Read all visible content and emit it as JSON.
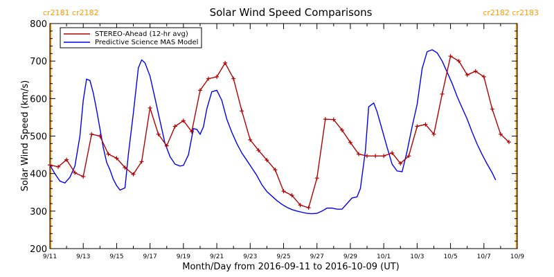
{
  "chart_data": {
    "type": "line",
    "title": "Solar Wind Speed Comparisons",
    "xlabel": "Month/Day from 2016-09-11 to 2016-10-09 (UT)",
    "ylabel": "Solar Wind Speed (km/s)",
    "xlim": [
      0,
      28
    ],
    "ylim": [
      200,
      800
    ],
    "yticks": [
      200,
      300,
      400,
      500,
      600,
      700,
      800
    ],
    "xticks": [
      {
        "x": 0,
        "label": "9/11"
      },
      {
        "x": 2,
        "label": "9/13"
      },
      {
        "x": 4,
        "label": "9/15"
      },
      {
        "x": 6,
        "label": "9/17"
      },
      {
        "x": 8,
        "label": "9/19"
      },
      {
        "x": 10,
        "label": "9/21"
      },
      {
        "x": 12,
        "label": "9/23"
      },
      {
        "x": 14,
        "label": "9/25"
      },
      {
        "x": 16,
        "label": "9/27"
      },
      {
        "x": 18,
        "label": "9/29"
      },
      {
        "x": 20,
        "label": "10/1"
      },
      {
        "x": 22,
        "label": "10/3"
      },
      {
        "x": 24,
        "label": "10/5"
      },
      {
        "x": 26,
        "label": "10/7"
      },
      {
        "x": 28,
        "label": "10/9"
      }
    ],
    "carrington": [
      {
        "x": 0.05,
        "label": "cr2181 cr2182",
        "side": "left"
      },
      {
        "x": 27.95,
        "label": "cr2182 cr2183",
        "side": "right"
      }
    ],
    "legend_position": "top-left",
    "series": [
      {
        "name": "STEREO-Ahead (12-hr avg)",
        "color": "#b00000",
        "markers": true,
        "points": [
          [
            0,
            423
          ],
          [
            0.5,
            418
          ],
          [
            1,
            437
          ],
          [
            1.5,
            402
          ],
          [
            2,
            392
          ],
          [
            2.5,
            505
          ],
          [
            3,
            500
          ],
          [
            3.5,
            452
          ],
          [
            4,
            441
          ],
          [
            4.5,
            416
          ],
          [
            5,
            398
          ],
          [
            5.5,
            432
          ],
          [
            6,
            575
          ],
          [
            6.5,
            505
          ],
          [
            7,
            474
          ],
          [
            7.5,
            526
          ],
          [
            8,
            541
          ],
          [
            8.5,
            512
          ],
          [
            9,
            622
          ],
          [
            9.5,
            653
          ],
          [
            10,
            658
          ],
          [
            10.5,
            695
          ],
          [
            11,
            653
          ],
          [
            11.5,
            567
          ],
          [
            12,
            490
          ],
          [
            12.5,
            462
          ],
          [
            13,
            436
          ],
          [
            13.5,
            410
          ],
          [
            14,
            353
          ],
          [
            14.5,
            342
          ],
          [
            15,
            316
          ],
          [
            15.5,
            309
          ],
          [
            16,
            388
          ],
          [
            16.5,
            545
          ],
          [
            17,
            544
          ],
          [
            17.5,
            516
          ],
          [
            18,
            483
          ],
          [
            18.5,
            452
          ],
          [
            19,
            447
          ],
          [
            19.5,
            447
          ],
          [
            20,
            447
          ],
          [
            20.5,
            455
          ],
          [
            21,
            427
          ],
          [
            21.5,
            447
          ],
          [
            22,
            526
          ],
          [
            22.5,
            531
          ],
          [
            23,
            505
          ],
          [
            23.5,
            612
          ],
          [
            24,
            713
          ],
          [
            24.5,
            700
          ],
          [
            25,
            663
          ],
          [
            25.5,
            673
          ],
          [
            26,
            658
          ],
          [
            26.5,
            572
          ],
          [
            27,
            505
          ],
          [
            27.5,
            484
          ]
        ]
      },
      {
        "name": "Predictive Science MAS Model",
        "color": "#0000ee",
        "markers": false,
        "points": [
          [
            0,
            423
          ],
          [
            0.3,
            400
          ],
          [
            0.6,
            380
          ],
          [
            0.9,
            375
          ],
          [
            1.2,
            390
          ],
          [
            1.5,
            420
          ],
          [
            1.8,
            500
          ],
          [
            2.0,
            595
          ],
          [
            2.2,
            652
          ],
          [
            2.4,
            648
          ],
          [
            2.6,
            615
          ],
          [
            2.8,
            570
          ],
          [
            3.0,
            520
          ],
          [
            3.2,
            470
          ],
          [
            3.4,
            430
          ],
          [
            3.6,
            410
          ],
          [
            3.8,
            385
          ],
          [
            4.0,
            368
          ],
          [
            4.2,
            356
          ],
          [
            4.5,
            362
          ],
          [
            4.7,
            450
          ],
          [
            5.0,
            560
          ],
          [
            5.3,
            682
          ],
          [
            5.5,
            703
          ],
          [
            5.7,
            695
          ],
          [
            6.0,
            660
          ],
          [
            6.3,
            600
          ],
          [
            6.6,
            540
          ],
          [
            6.9,
            480
          ],
          [
            7.2,
            445
          ],
          [
            7.5,
            425
          ],
          [
            7.8,
            420
          ],
          [
            8.0,
            422
          ],
          [
            8.3,
            450
          ],
          [
            8.6,
            520
          ],
          [
            8.8,
            518
          ],
          [
            9.0,
            505
          ],
          [
            9.2,
            525
          ],
          [
            9.4,
            572
          ],
          [
            9.7,
            618
          ],
          [
            10.0,
            622
          ],
          [
            10.3,
            595
          ],
          [
            10.6,
            545
          ],
          [
            10.9,
            510
          ],
          [
            11.2,
            480
          ],
          [
            11.5,
            455
          ],
          [
            11.8,
            435
          ],
          [
            12.1,
            415
          ],
          [
            12.4,
            395
          ],
          [
            12.7,
            370
          ],
          [
            13.0,
            352
          ],
          [
            13.3,
            340
          ],
          [
            13.6,
            328
          ],
          [
            13.9,
            318
          ],
          [
            14.2,
            310
          ],
          [
            14.5,
            304
          ],
          [
            14.8,
            300
          ],
          [
            15.1,
            297
          ],
          [
            15.4,
            294
          ],
          [
            15.7,
            293
          ],
          [
            16.0,
            294
          ],
          [
            16.3,
            300
          ],
          [
            16.6,
            308
          ],
          [
            16.9,
            308
          ],
          [
            17.2,
            305
          ],
          [
            17.5,
            305
          ],
          [
            17.8,
            320
          ],
          [
            18.1,
            335
          ],
          [
            18.4,
            338
          ],
          [
            18.6,
            360
          ],
          [
            18.9,
            460
          ],
          [
            19.1,
            578
          ],
          [
            19.4,
            588
          ],
          [
            19.6,
            565
          ],
          [
            19.9,
            518
          ],
          [
            20.2,
            470
          ],
          [
            20.5,
            425
          ],
          [
            20.8,
            407
          ],
          [
            21.1,
            405
          ],
          [
            21.4,
            460
          ],
          [
            21.7,
            525
          ],
          [
            22.0,
            585
          ],
          [
            22.3,
            680
          ],
          [
            22.6,
            725
          ],
          [
            22.9,
            730
          ],
          [
            23.2,
            722
          ],
          [
            23.5,
            700
          ],
          [
            23.8,
            670
          ],
          [
            24.1,
            640
          ],
          [
            24.4,
            605
          ],
          [
            24.7,
            575
          ],
          [
            25.0,
            545
          ],
          [
            25.3,
            510
          ],
          [
            25.6,
            478
          ],
          [
            25.9,
            450
          ],
          [
            26.2,
            425
          ],
          [
            26.5,
            402
          ],
          [
            26.7,
            383
          ]
        ]
      }
    ]
  }
}
